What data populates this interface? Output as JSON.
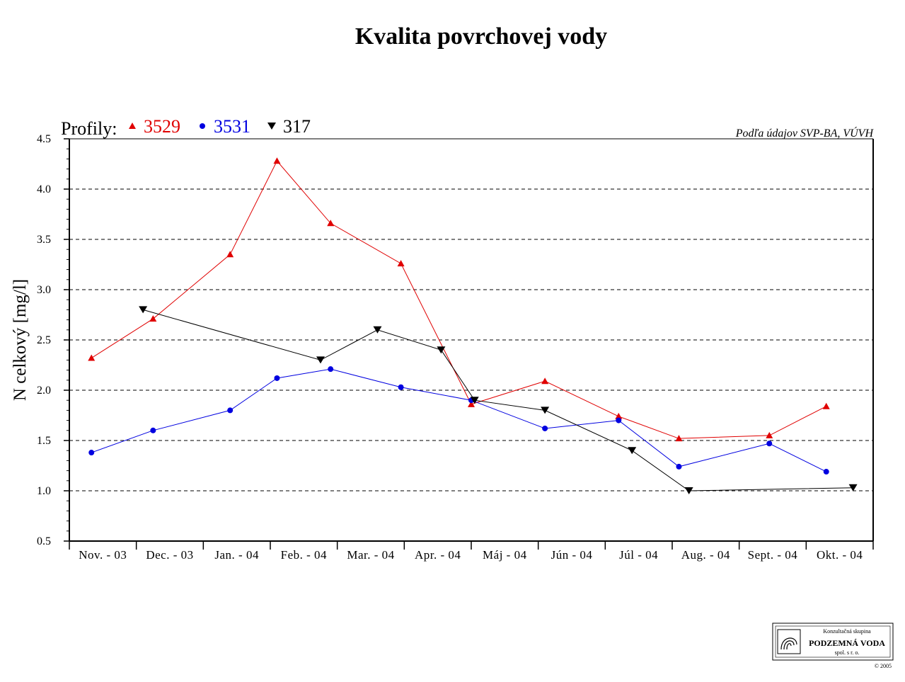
{
  "chart_data": {
    "type": "line",
    "title": "Kvalita povrchovej vody",
    "ylabel": "N celkový [mg/l]",
    "xlabel": "",
    "ylim": [
      0.5,
      4.5
    ],
    "yticks": [
      "0.5",
      "1.0",
      "1.5",
      "2.0",
      "2.5",
      "3.0",
      "3.5",
      "4.0",
      "4.5"
    ],
    "categories": [
      "Nov. - 03",
      "Dec. - 03",
      "Jan. - 04",
      "Feb. - 04",
      "Mar. - 04",
      "Apr. - 04",
      "Máj - 04",
      "Jún - 04",
      "Júl - 04",
      "Aug. - 04",
      "Sept. - 04",
      "Okt. - 04"
    ],
    "grid": "horizontal dashed",
    "legend_title": "Profily:",
    "legend_position": "top-left",
    "series": [
      {
        "name": "3529",
        "color": "#e00000",
        "marker": "triangle-up",
        "x": [
          0.33,
          1.25,
          2.4,
          3.1,
          3.9,
          4.95,
          6.0,
          7.1,
          8.2,
          9.1,
          10.45,
          11.3
        ],
        "values": [
          2.32,
          2.71,
          3.35,
          4.28,
          3.66,
          3.26,
          1.86,
          2.09,
          1.74,
          1.52,
          1.55,
          1.84
        ]
      },
      {
        "name": "3531",
        "color": "#0000e0",
        "marker": "circle",
        "x": [
          0.33,
          1.25,
          2.4,
          3.1,
          3.9,
          4.95,
          6.0,
          7.1,
          8.2,
          9.1,
          10.45,
          11.3
        ],
        "values": [
          1.38,
          1.6,
          1.8,
          2.12,
          2.21,
          2.03,
          1.9,
          1.62,
          1.7,
          1.24,
          1.47,
          1.19
        ]
      },
      {
        "name": "317",
        "color": "#000000",
        "marker": "triangle-down",
        "x": [
          1.1,
          3.75,
          4.6,
          5.55,
          6.05,
          7.1,
          8.4,
          9.25,
          11.7
        ],
        "values": [
          2.8,
          2.3,
          2.6,
          2.4,
          1.9,
          1.8,
          1.4,
          1.0,
          1.03
        ]
      }
    ],
    "source_note": "Podľa údajov SVP-BA, VÚVH"
  },
  "logo": {
    "line1": "Konzultačná skupina",
    "line2": "PODZEMNÁ VODA",
    "line3": "spol. s r. o.",
    "copyright": "© 2005"
  }
}
